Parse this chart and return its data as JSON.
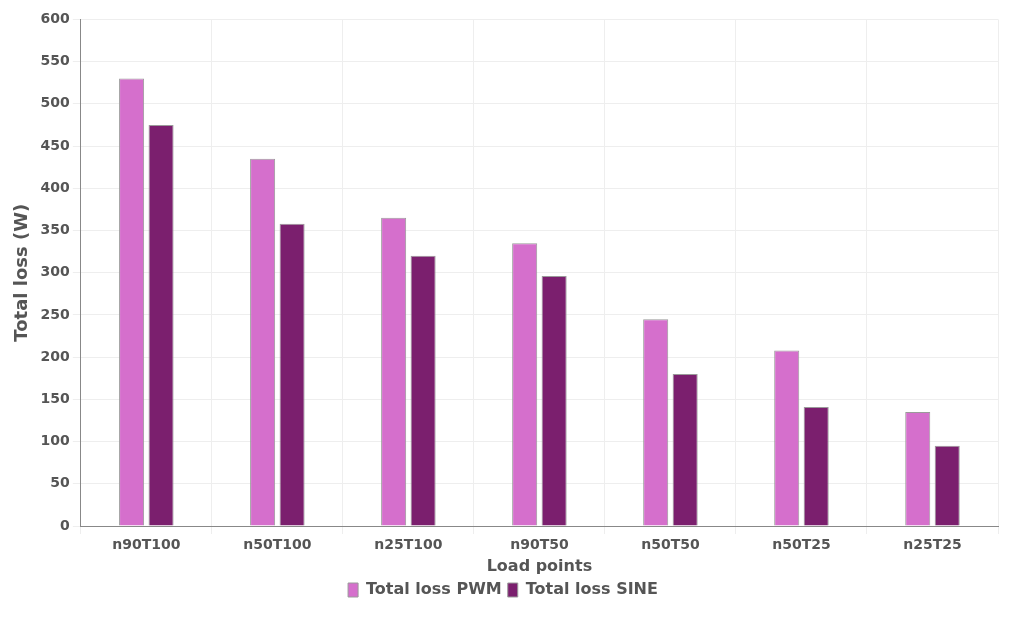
{
  "chart_data": {
    "type": "bar",
    "xlabel": "Load points",
    "ylabel": "Total loss (W)",
    "categories": [
      "n90T100",
      "n50T100",
      "n25T100",
      "n90T50",
      "n50T50",
      "n50T25",
      "n25T25"
    ],
    "series": [
      {
        "name": "Total loss PWM",
        "color": "#d56fcc",
        "values": [
          530,
          435,
          365,
          335,
          245,
          208,
          135
        ]
      },
      {
        "name": "Total loss SINE",
        "color": "#7b1f6e",
        "values": [
          475,
          358,
          320,
          296,
          180,
          141,
          95
        ]
      }
    ],
    "ylim": [
      0,
      600
    ],
    "yticks": [
      0,
      50,
      100,
      150,
      200,
      250,
      300,
      350,
      400,
      450,
      500,
      550,
      600
    ],
    "grid": true,
    "legend": "bottom"
  }
}
